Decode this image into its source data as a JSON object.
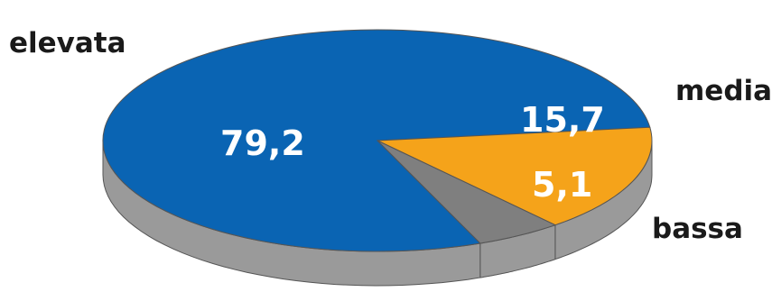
{
  "chart_data": {
    "type": "pie",
    "style": "3d",
    "title": "",
    "legend": "none",
    "decimal_separator": ",",
    "slices": [
      {
        "label": "elevata",
        "value": 79.2,
        "value_label": "79,2",
        "color": "#0a64b3",
        "side_color": "#084c8a"
      },
      {
        "label": "media",
        "value": 15.7,
        "value_label": "15,7",
        "color": "#f5a31a",
        "side_color": "#c47f0c"
      },
      {
        "label": "bassa",
        "value": 5.1,
        "value_label": "5,1",
        "color": "#7f7f7f",
        "side_color": "#626262"
      }
    ],
    "rim_color": "#9a9a9a",
    "outline_color": "#555555"
  }
}
